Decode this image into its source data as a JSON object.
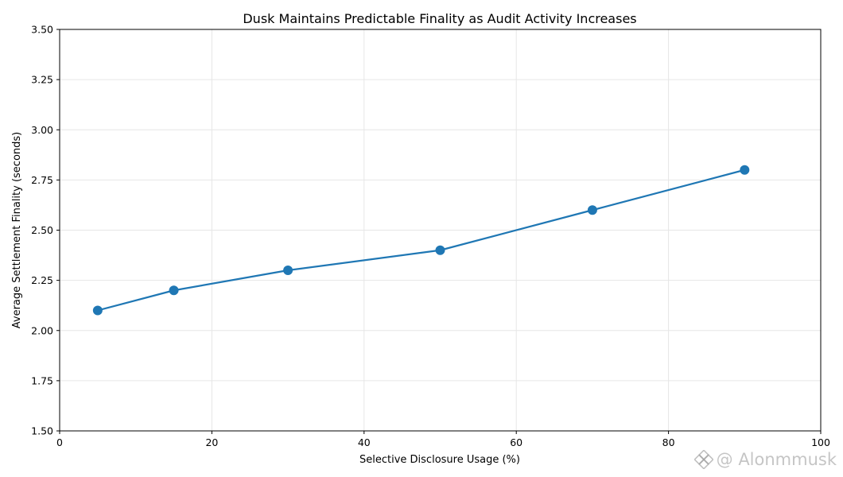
{
  "chart_data": {
    "type": "line",
    "title": "Dusk Maintains Predictable Finality as Audit Activity Increases",
    "xlabel": "Selective Disclosure Usage (%)",
    "ylabel": "Average Settlement Finality (seconds)",
    "xlim": [
      0,
      100
    ],
    "ylim": [
      1.5,
      3.5
    ],
    "x_ticks": [
      0,
      20,
      40,
      60,
      80,
      100
    ],
    "x_tick_labels": [
      "0",
      "20",
      "40",
      "60",
      "80",
      "100"
    ],
    "y_ticks": [
      1.5,
      1.75,
      2.0,
      2.25,
      2.5,
      2.75,
      3.0,
      3.25,
      3.5
    ],
    "y_tick_labels": [
      "1.50",
      "1.75",
      "2.00",
      "2.25",
      "2.50",
      "2.75",
      "3.00",
      "3.25",
      "3.50"
    ],
    "grid": true,
    "series": [
      {
        "x": [
          5,
          15,
          30,
          50,
          70,
          90
        ],
        "y": [
          2.1,
          2.2,
          2.3,
          2.4,
          2.6,
          2.8
        ],
        "color": "#1f77b4",
        "marker": "circle"
      }
    ]
  },
  "watermark": {
    "text": "@ Alonmmusk",
    "icon": "binance-logo-icon"
  }
}
